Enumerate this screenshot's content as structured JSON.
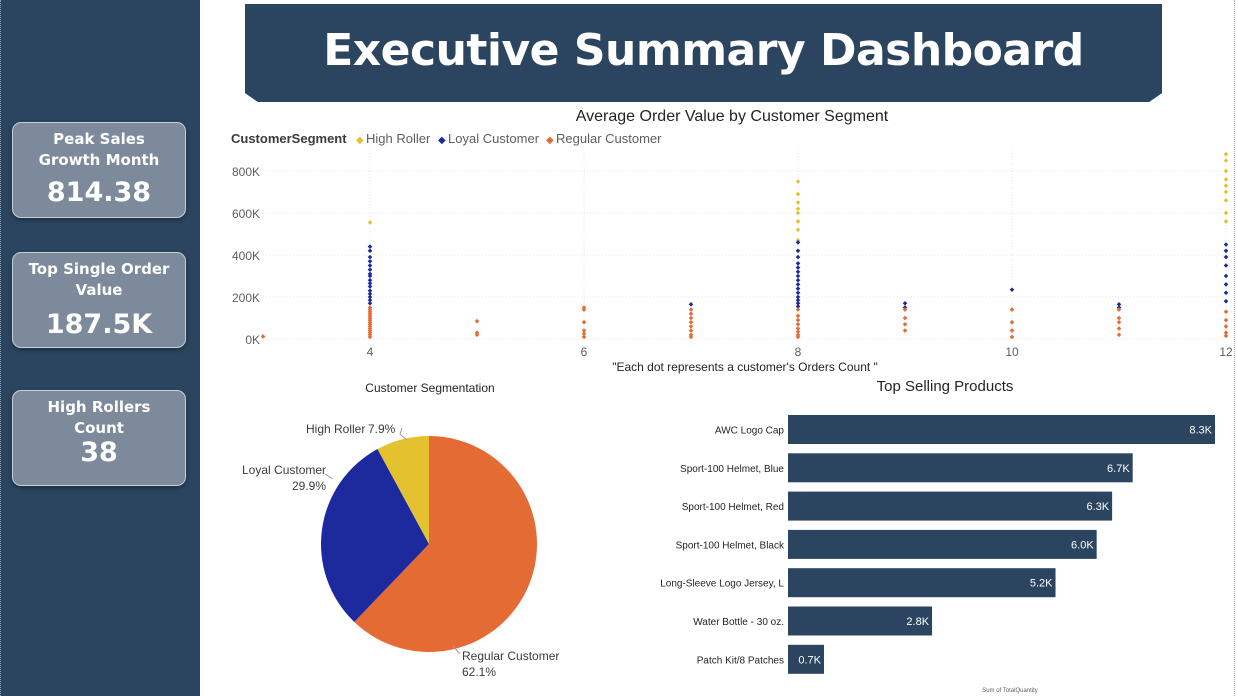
{
  "header": {
    "title": "Executive Summary Dashboard"
  },
  "kpis": [
    {
      "label": "Peak Sales Growth Month",
      "value": "814.38"
    },
    {
      "label": "Top Single Order Value",
      "value": "187.5K"
    },
    {
      "label": "High Rollers Count",
      "value": "38"
    }
  ],
  "colors": {
    "navy": "#2b4560",
    "high_roller": "#e3c12f",
    "loyal_customer": "#1c2a9e",
    "regular_customer": "#e46c34",
    "kpi_card": "#7c8a9c"
  },
  "chart_data": [
    {
      "id": "scatter",
      "type": "scatter",
      "title": "Average Order Value by Customer Segment",
      "xlabel": "\"Each dot represents a customer's Orders Count \"",
      "ylabel": "",
      "xlim": [
        3,
        12
      ],
      "ylim": [
        0,
        900000
      ],
      "x_ticks": [
        4,
        6,
        8,
        10,
        12
      ],
      "x_tick_labels": [
        "4",
        "6",
        "8",
        "10",
        "12"
      ],
      "y_ticks": [
        0,
        200000,
        400000,
        600000,
        800000
      ],
      "y_tick_labels": [
        "0K",
        "200K",
        "400K",
        "600K",
        "800K"
      ],
      "legend": {
        "title": "CustomerSegment",
        "position": "top-left"
      },
      "grid": true,
      "series": [
        {
          "name": "High Roller",
          "color": "#e3c12f",
          "points": [
            [
              4,
              555000
            ],
            [
              8,
              750000
            ],
            [
              8,
              690000
            ],
            [
              8,
              650000
            ],
            [
              8,
              620000
            ],
            [
              8,
              600000
            ],
            [
              8,
              560000
            ],
            [
              8,
              520000
            ],
            [
              8,
              470000
            ],
            [
              12,
              880000
            ],
            [
              12,
              850000
            ],
            [
              12,
              800000
            ],
            [
              12,
              760000
            ],
            [
              12,
              730000
            ],
            [
              12,
              700000
            ],
            [
              12,
              660000
            ],
            [
              12,
              600000
            ],
            [
              12,
              560000
            ]
          ]
        },
        {
          "name": "Loyal Customer",
          "color": "#1c2a9e",
          "points": [
            [
              4,
              440000
            ],
            [
              4,
              420000
            ],
            [
              4,
              390000
            ],
            [
              4,
              370000
            ],
            [
              4,
              350000
            ],
            [
              4,
              330000
            ],
            [
              4,
              310000
            ],
            [
              4,
              300000
            ],
            [
              4,
              280000
            ],
            [
              4,
              265000
            ],
            [
              4,
              250000
            ],
            [
              4,
              230000
            ],
            [
              4,
              215000
            ],
            [
              4,
              200000
            ],
            [
              4,
              185000
            ],
            [
              4,
              170000
            ],
            [
              7,
              165000
            ],
            [
              8,
              460000
            ],
            [
              8,
              420000
            ],
            [
              8,
              390000
            ],
            [
              8,
              360000
            ],
            [
              8,
              340000
            ],
            [
              8,
              320000
            ],
            [
              8,
              300000
            ],
            [
              8,
              280000
            ],
            [
              8,
              260000
            ],
            [
              8,
              240000
            ],
            [
              8,
              220000
            ],
            [
              8,
              200000
            ],
            [
              8,
              185000
            ],
            [
              8,
              170000
            ],
            [
              8,
              155000
            ],
            [
              9,
              170000
            ],
            [
              9,
              150000
            ],
            [
              10,
              235000
            ],
            [
              11,
              165000
            ],
            [
              11,
              150000
            ],
            [
              12,
              450000
            ],
            [
              12,
              420000
            ],
            [
              12,
              390000
            ],
            [
              12,
              350000
            ],
            [
              12,
              300000
            ],
            [
              12,
              260000
            ],
            [
              12,
              220000
            ],
            [
              12,
              180000
            ]
          ]
        },
        {
          "name": "Regular Customer",
          "color": "#e46c34",
          "points": [
            [
              3,
              12000
            ],
            [
              4,
              150000
            ],
            [
              4,
              140000
            ],
            [
              4,
              130000
            ],
            [
              4,
              120000
            ],
            [
              4,
              110000
            ],
            [
              4,
              100000
            ],
            [
              4,
              90000
            ],
            [
              4,
              80000
            ],
            [
              4,
              70000
            ],
            [
              4,
              60000
            ],
            [
              4,
              50000
            ],
            [
              4,
              40000
            ],
            [
              4,
              30000
            ],
            [
              4,
              20000
            ],
            [
              4,
              10000
            ],
            [
              5,
              85000
            ],
            [
              5,
              30000
            ],
            [
              5,
              20000
            ],
            [
              6,
              150000
            ],
            [
              6,
              140000
            ],
            [
              6,
              80000
            ],
            [
              6,
              40000
            ],
            [
              6,
              25000
            ],
            [
              6,
              10000
            ],
            [
              7,
              140000
            ],
            [
              7,
              120000
            ],
            [
              7,
              100000
            ],
            [
              7,
              80000
            ],
            [
              7,
              60000
            ],
            [
              7,
              40000
            ],
            [
              7,
              20000
            ],
            [
              7,
              10000
            ],
            [
              8,
              140000
            ],
            [
              8,
              110000
            ],
            [
              8,
              90000
            ],
            [
              8,
              70000
            ],
            [
              8,
              50000
            ],
            [
              8,
              35000
            ],
            [
              8,
              20000
            ],
            [
              8,
              10000
            ],
            [
              9,
              140000
            ],
            [
              9,
              100000
            ],
            [
              9,
              70000
            ],
            [
              9,
              40000
            ],
            [
              10,
              140000
            ],
            [
              10,
              80000
            ],
            [
              10,
              40000
            ],
            [
              10,
              10000
            ],
            [
              11,
              140000
            ],
            [
              11,
              100000
            ],
            [
              11,
              80000
            ],
            [
              11,
              50000
            ],
            [
              11,
              20000
            ],
            [
              12,
              130000
            ],
            [
              12,
              90000
            ],
            [
              12,
              60000
            ],
            [
              12,
              30000
            ],
            [
              12,
              15000
            ]
          ]
        }
      ]
    },
    {
      "id": "pie",
      "type": "pie",
      "title": "Customer Segmentation",
      "slices": [
        {
          "name": "Regular Customer",
          "value": 62.1,
          "label": "62.1%",
          "color": "#e46c34"
        },
        {
          "name": "Loyal Customer",
          "value": 29.9,
          "label": "29.9%",
          "color": "#1c2a9e"
        },
        {
          "name": "High Roller",
          "value": 7.9,
          "label": "7.9%",
          "color": "#e3c12f"
        }
      ]
    },
    {
      "id": "bar",
      "type": "bar",
      "orientation": "horizontal",
      "title": "Top Selling Products",
      "xlabel": "Sum of TotalQuantity",
      "ylabel": "",
      "xlim": [
        0,
        8300
      ],
      "categories": [
        "AWC Logo Cap",
        "Sport-100 Helmet, Blue",
        "Sport-100 Helmet, Red",
        "Sport-100 Helmet, Black",
        "Long-Sleeve Logo Jersey, L",
        "Water Bottle - 30 oz.",
        "Patch Kit/8 Patches"
      ],
      "values": [
        8300,
        6700,
        6300,
        6000,
        5200,
        2800,
        700
      ],
      "data_labels": [
        "8.3K",
        "6.7K",
        "6.3K",
        "6.0K",
        "5.2K",
        "2.8K",
        "0.7K"
      ],
      "color": "#2b4560"
    }
  ]
}
